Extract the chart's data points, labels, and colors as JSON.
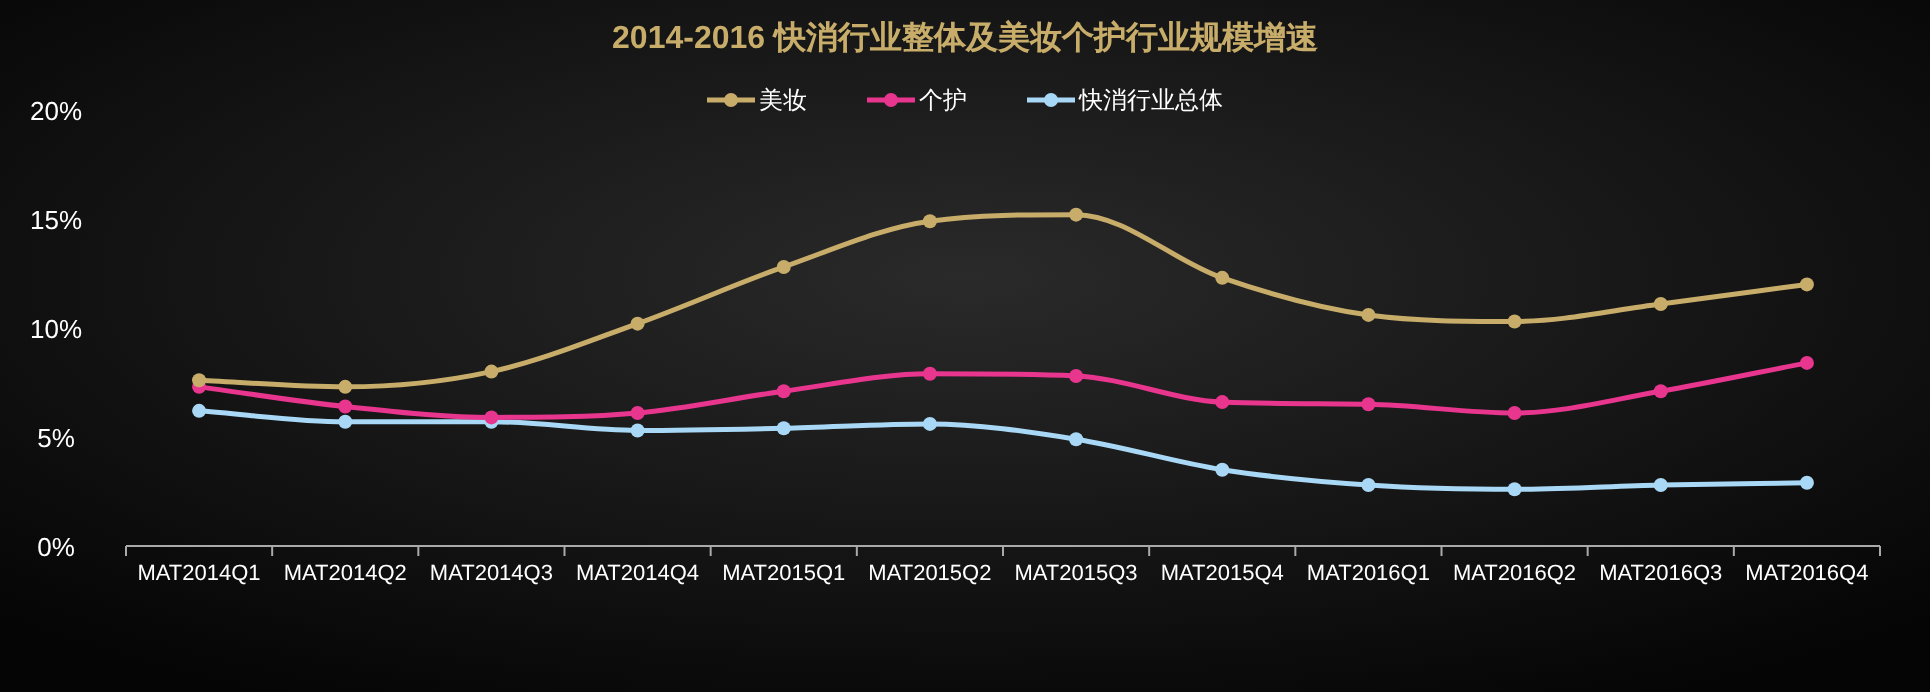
{
  "chart_data": {
    "type": "line",
    "title": "2014-2016 快消行业整体及美妆个护行业规模增速",
    "categories": [
      "MAT2014Q1",
      "MAT2014Q2",
      "MAT2014Q3",
      "MAT2014Q4",
      "MAT2015Q1",
      "MAT2015Q2",
      "MAT2015Q3",
      "MAT2015Q4",
      "MAT2016Q1",
      "MAT2016Q2",
      "MAT2016Q3",
      "MAT2016Q4"
    ],
    "series": [
      {
        "name": "美妆",
        "color": "#c8ad6a",
        "values": [
          7.6,
          7.3,
          8.0,
          10.2,
          12.8,
          14.9,
          15.2,
          12.3,
          10.6,
          10.3,
          11.1,
          12.0
        ]
      },
      {
        "name": "个护",
        "color": "#e8368f",
        "values": [
          7.3,
          6.4,
          5.9,
          6.1,
          7.1,
          7.9,
          7.8,
          6.6,
          6.5,
          6.1,
          7.1,
          8.4
        ]
      },
      {
        "name": "快消行业总体",
        "color": "#a8d8f5",
        "values": [
          6.2,
          5.7,
          5.7,
          5.3,
          5.4,
          5.6,
          4.9,
          3.5,
          2.8,
          2.6,
          2.8,
          2.9
        ]
      }
    ],
    "ylim": [
      0,
      20
    ],
    "yticks": [
      {
        "value": 0,
        "label": "0%"
      },
      {
        "value": 5,
        "label": "5%"
      },
      {
        "value": 10,
        "label": "10%"
      },
      {
        "value": 15,
        "label": "15%"
      },
      {
        "value": 20,
        "label": "20%"
      }
    ],
    "grid": false,
    "legend": "top",
    "marker": "circle",
    "line_style": "solid"
  }
}
